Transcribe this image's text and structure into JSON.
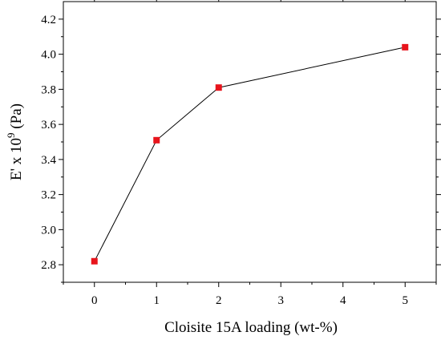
{
  "chart_data": {
    "type": "line",
    "title": "",
    "xlabel": "Cloisite 15A loading (wt-%)",
    "ylabel": {
      "prefix": "E' x 10",
      "superscript": "9",
      "suffix": " (Pa)"
    },
    "x_ticks": [
      "0",
      "1",
      "2",
      "3",
      "4",
      "5"
    ],
    "y_ticks": [
      "2.8",
      "3.0",
      "3.2",
      "3.4",
      "3.6",
      "3.8",
      "4.0",
      "4.2"
    ],
    "xlim": [
      -0.5,
      5.5
    ],
    "ylim": [
      2.7,
      4.3
    ],
    "grid": false,
    "series": [
      {
        "color": "#e8141c",
        "marker": "square",
        "line_color": "#000000",
        "points": [
          {
            "x": 0,
            "y": 2.82
          },
          {
            "x": 1,
            "y": 3.51
          },
          {
            "x": 2,
            "y": 3.81
          },
          {
            "x": 5,
            "y": 4.04
          }
        ]
      }
    ]
  }
}
